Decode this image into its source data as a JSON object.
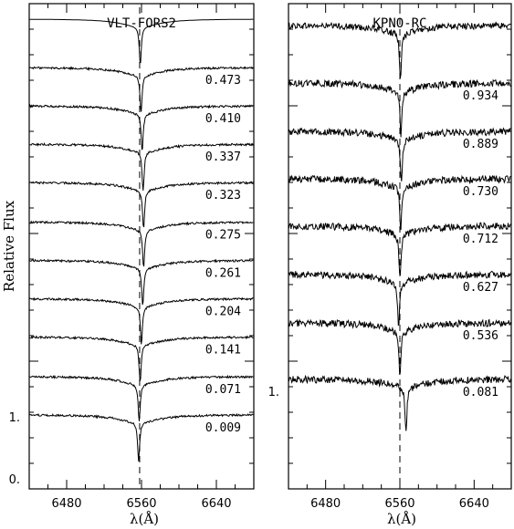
{
  "y_axis_label": "Relative Flux",
  "x_axis_label": "λ(Å)",
  "y_tick_labels": [
    "0.",
    "1."
  ],
  "chart_data": [
    {
      "type": "line",
      "title": "VLT-FORS2",
      "xlabel": "λ(Å)",
      "ylabel": "Relative Flux",
      "xlim": [
        6440,
        6680
      ],
      "xticks": [
        6480,
        6560,
        6640
      ],
      "ylim": [
        0,
        3.8
      ],
      "yticks_labeled": [
        0,
        1
      ],
      "reference_line_x": 6558,
      "line_center_offset": 0.7,
      "line_depth": 0.3,
      "noise_level": 0.008,
      "series": [
        {
          "label": "",
          "offset": 3.6,
          "shift": 0,
          "model": true
        },
        {
          "label": "0.473",
          "offset": 3.22,
          "shift": 0.8
        },
        {
          "label": "0.410",
          "offset": 2.92,
          "shift": 2.0
        },
        {
          "label": "0.337",
          "offset": 2.62,
          "shift": 3.0
        },
        {
          "label": "0.323",
          "offset": 2.32,
          "shift": 3.5
        },
        {
          "label": "0.275",
          "offset": 2.01,
          "shift": 3.5
        },
        {
          "label": "0.261",
          "offset": 1.71,
          "shift": 2.6
        },
        {
          "label": "0.204",
          "offset": 1.41,
          "shift": 1.2
        },
        {
          "label": "0.141",
          "offset": 1.11,
          "shift": -0.2
        },
        {
          "label": "0.071",
          "offset": 0.8,
          "shift": -1.2
        },
        {
          "label": "0.009",
          "offset": 0.5,
          "shift": -1.8
        }
      ]
    },
    {
      "type": "line",
      "title": "KPNO-RC",
      "xlabel": "λ(Å)",
      "xlim": [
        6440,
        6680
      ],
      "xticks": [
        6480,
        6560,
        6640
      ],
      "ylim": [
        0.0,
        3.8
      ],
      "yticks_labeled": [
        1
      ],
      "reference_line_x": 6560,
      "line_center_offset": 0.6,
      "line_depth": 0.35,
      "noise_level": 0.025,
      "series": [
        {
          "label": "",
          "offset": 3.55,
          "shift": 0,
          "model": false
        },
        {
          "label": "0.934",
          "offset": 3.1,
          "shift": 0.5
        },
        {
          "label": "0.889",
          "offset": 2.72,
          "shift": 1.0
        },
        {
          "label": "0.730",
          "offset": 2.35,
          "shift": 0.3
        },
        {
          "label": "0.712",
          "offset": 1.98,
          "shift": -0.5
        },
        {
          "label": "0.627",
          "offset": 1.6,
          "shift": -2.0
        },
        {
          "label": "0.536",
          "offset": 1.22,
          "shift": -0.5
        },
        {
          "label": "0.081",
          "offset": 0.78,
          "shift": 6.0
        }
      ]
    }
  ]
}
